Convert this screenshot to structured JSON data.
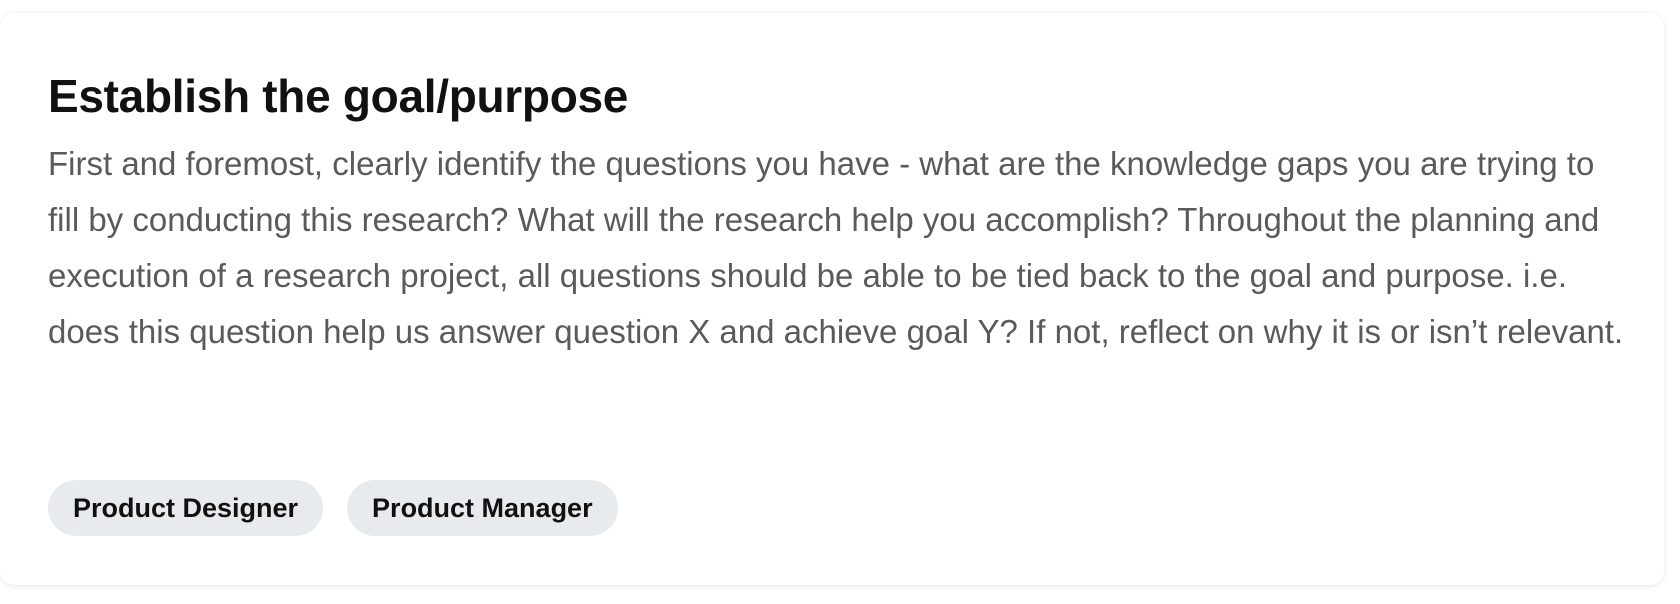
{
  "card": {
    "title": "Establish the goal/purpose",
    "description": "First and foremost, clearly identify the questions you have - what are the knowledge gaps you are trying to fill by conducting this research? What will the research help you accomplish? Throughout the planning and execution of a research project, all questions should be able to be tied back to the goal and purpose. i.e. does this question help us answer question X and achieve goal Y?  If not, reflect on why it is or isn’t relevant.",
    "tags": [
      {
        "label": "Product Designer"
      },
      {
        "label": "Product Manager"
      }
    ]
  },
  "colors": {
    "title": "#111111",
    "body_text": "#5a5a5a",
    "tag_background": "#e8ebee"
  }
}
